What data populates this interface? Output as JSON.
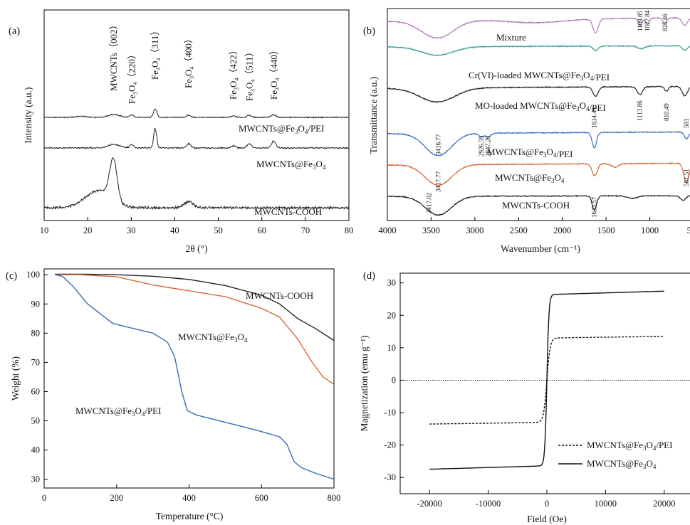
{
  "chart_data": [
    {
      "panel": "(a)",
      "type": "line",
      "xlabel": "2θ (°)",
      "ylabel": "Intensity (a.u.)",
      "xlim": [
        10,
        80
      ],
      "xticks": [
        10,
        20,
        30,
        40,
        50,
        60,
        70,
        80
      ],
      "series": [
        {
          "name": "MWCNTs@Fe3O4/PEI",
          "label_parts": [
            "MWCNTs@Fe",
            "3",
            "O",
            "4",
            "/PEI"
          ],
          "color": "#222222",
          "peaks": [
            [
              18.5,
              0.15,
              1.2
            ],
            [
              26,
              0.4,
              1.3
            ],
            [
              30.1,
              0.35,
              0.45
            ],
            [
              35.5,
              1.2,
              0.4
            ],
            [
              43.2,
              0.3,
              0.5
            ],
            [
              53.5,
              0.2,
              0.5
            ],
            [
              57.1,
              0.3,
              0.5
            ],
            [
              62.7,
              0.4,
              0.5
            ]
          ]
        },
        {
          "name": "MWCNTs@Fe3O4",
          "label_parts": [
            "MWCNTs@Fe",
            "3",
            "O",
            "4"
          ],
          "color": "#222222",
          "peaks": [
            [
              26,
              0.4,
              1.4
            ],
            [
              30.1,
              0.4,
              0.45
            ],
            [
              35.5,
              2.3,
              0.35
            ],
            [
              43.2,
              0.5,
              0.5
            ],
            [
              53.5,
              0.25,
              0.5
            ],
            [
              57.1,
              0.5,
              0.5
            ],
            [
              62.7,
              0.8,
              0.5
            ]
          ]
        },
        {
          "name": "MWCNTs-COOH",
          "label_parts": [
            "MWCNTs-COOH"
          ],
          "color": "#222222",
          "peaks": [
            [
              22.5,
              1.1,
              3.0
            ],
            [
              25.9,
              2.6,
              0.85
            ],
            [
              43.2,
              0.4,
              1.0
            ]
          ]
        }
      ],
      "annotations": [
        {
          "text": "MWCNTs（002）",
          "x": 26
        },
        {
          "text": "Fe3O4（220）",
          "x": 30.2
        },
        {
          "text": "Fe3O4（311）",
          "x": 35.5
        },
        {
          "text": "Fe3O4（400）",
          "x": 43.2
        },
        {
          "text": "Fe3O4（422）",
          "x": 53.5
        },
        {
          "text": "Fe3O4（511）",
          "x": 57.2
        },
        {
          "text": "Fe3O4（440）",
          "x": 62.8
        }
      ]
    },
    {
      "panel": "(b)",
      "type": "line",
      "xlabel": "Wavenumber (cm⁻¹)",
      "ylabel": "Transmittance (a.u.)",
      "xlim": [
        4000,
        500
      ],
      "xticks": [
        4000,
        3500,
        3000,
        2500,
        2000,
        1500,
        1000,
        500
      ],
      "series": [
        {
          "name": "Mixture",
          "color": "#b07ab9",
          "dips": [
            [
              3430,
              1.1,
              180
            ],
            [
              2300,
              0.2,
              300
            ],
            [
              1620,
              0.9,
              30
            ],
            [
              1109.85,
              0.5,
              20
            ],
            [
              1027.84,
              0.4,
              20
            ],
            [
              825.46,
              0.4,
              20
            ],
            [
              600,
              0.5,
              30
            ]
          ]
        },
        {
          "name": "Cr(VI)-loaded MWCNTs@Fe3O4/PEI",
          "color": "#3a9b96",
          "dips": [
            [
              3430,
              0.6,
              180
            ],
            [
              1620,
              0.3,
              30
            ],
            [
              1100,
              0.2,
              40
            ],
            [
              600,
              0.3,
              30
            ]
          ]
        },
        {
          "name": "MO-loaded MWCNTs@Fe3O4/PEI",
          "color": "#222222",
          "dips": [
            [
              3430,
              0.9,
              200
            ],
            [
              1620,
              0.6,
              30
            ],
            [
              1113.86,
              0.5,
              30
            ],
            [
              810.49,
              0.3,
              20
            ],
            [
              600,
              0.6,
              30
            ]
          ]
        },
        {
          "name": "MWCNTs@Fe3O4/PEI",
          "color": "#3a6fbf",
          "dips": [
            [
              3416.77,
              1.3,
              150
            ],
            [
              2926.59,
              0.2,
              30
            ],
            [
              2847.26,
              0.2,
              30
            ],
            [
              1634.41,
              0.9,
              25
            ],
            [
              581,
              0.4,
              25
            ]
          ]
        },
        {
          "name": "MWCNTs@Fe3O4",
          "color": "#d4683a",
          "dips": [
            [
              3417.77,
              1.2,
              150
            ],
            [
              1630,
              0.7,
              30
            ],
            [
              1400,
              0.2,
              40
            ],
            [
              581.51,
              1.1,
              30
            ]
          ]
        },
        {
          "name": "MWCNTs-COOH",
          "color": "#222222",
          "dips": [
            [
              3417.02,
              1.2,
              150
            ],
            [
              1633.57,
              0.9,
              25
            ],
            [
              1200,
              0.15,
              60
            ],
            [
              620,
              0.3,
              30
            ]
          ]
        }
      ],
      "peak_labels": [
        "1109.85",
        "1027.84",
        "825.46",
        "1113.86",
        "810.49",
        "3416.77",
        "2926.59",
        "2847.26",
        "1634.41",
        "581",
        "581.51",
        "3417.77",
        "3417.02",
        "1633.57"
      ]
    },
    {
      "panel": "(c)",
      "type": "line",
      "xlabel": "Temperature (°C)",
      "ylabel": "Weight (%)",
      "xlim": [
        0,
        800
      ],
      "ylim": [
        27,
        102
      ],
      "xticks": [
        0,
        200,
        400,
        600,
        800
      ],
      "yticks": [
        30,
        40,
        50,
        60,
        70,
        80,
        90,
        100
      ],
      "series": [
        {
          "name": "MWCNTs-COOH",
          "label_parts": [
            "MWCNTs-COOH"
          ],
          "color": "#222222",
          "points": [
            [
              30,
              100.2
            ],
            [
              100,
              100.2
            ],
            [
              200,
              100
            ],
            [
              300,
              99.5
            ],
            [
              400,
              98.4
            ],
            [
              500,
              96.3
            ],
            [
              600,
              93
            ],
            [
              650,
              90
            ],
            [
              700,
              85
            ],
            [
              750,
              81.5
            ],
            [
              800,
              77.5
            ]
          ]
        },
        {
          "name": "MWCNTs@Fe3O4",
          "label_parts": [
            "MWCNTs@Fe",
            "3",
            "O",
            "4"
          ],
          "color": "#d4683a",
          "points": [
            [
              30,
              100
            ],
            [
              100,
              100
            ],
            [
              200,
              99.3
            ],
            [
              300,
              96.5
            ],
            [
              400,
              94.5
            ],
            [
              500,
              92.5
            ],
            [
              600,
              88.5
            ],
            [
              650,
              85.5
            ],
            [
              700,
              78
            ],
            [
              740,
              70
            ],
            [
              770,
              65
            ],
            [
              800,
              62.5
            ]
          ]
        },
        {
          "name": "MWCNTs@Fe3O4/PEI",
          "label_parts": [
            "MWCNTs@Fe",
            "3",
            "O",
            "4",
            "/PEI"
          ],
          "color": "#3b6db3",
          "points": [
            [
              30,
              100
            ],
            [
              50,
              99.5
            ],
            [
              80,
              96
            ],
            [
              120,
              90
            ],
            [
              190,
              83.3
            ],
            [
              250,
              81.5
            ],
            [
              300,
              80
            ],
            [
              340,
              77
            ],
            [
              360,
              72
            ],
            [
              380,
              60
            ],
            [
              395,
              53.5
            ],
            [
              420,
              52
            ],
            [
              500,
              49.5
            ],
            [
              600,
              46.3
            ],
            [
              650,
              44.5
            ],
            [
              670,
              42
            ],
            [
              690,
              36
            ],
            [
              710,
              34
            ],
            [
              750,
              32
            ],
            [
              800,
              30
            ]
          ]
        }
      ]
    },
    {
      "panel": "(d)",
      "type": "line",
      "xlabel": "Field (Oe)",
      "ylabel": "Magnetization (emu g⁻¹)",
      "xlim": [
        -25000,
        25000
      ],
      "ylim": [
        -35,
        33
      ],
      "xticks": [
        -20000,
        -10000,
        0,
        10000,
        20000
      ],
      "yticks": [
        -30,
        -20,
        -10,
        0,
        10,
        20,
        30
      ],
      "zero_line": true,
      "series": [
        {
          "name": "MWCNTs@Fe3O4/PEI",
          "label_parts": [
            "MWCNTs@Fe",
            "3",
            "O",
            "4",
            "/PEI"
          ],
          "style": "dashed",
          "ms": 13,
          "k": 0.0018
        },
        {
          "name": "MWCNTs@Fe3O4",
          "label_parts": [
            "MWCNTs@Fe",
            "3",
            "O",
            "4"
          ],
          "style": "solid",
          "ms": 26.4,
          "k": 0.0028
        }
      ],
      "legend_position": "bottom-right"
    }
  ]
}
